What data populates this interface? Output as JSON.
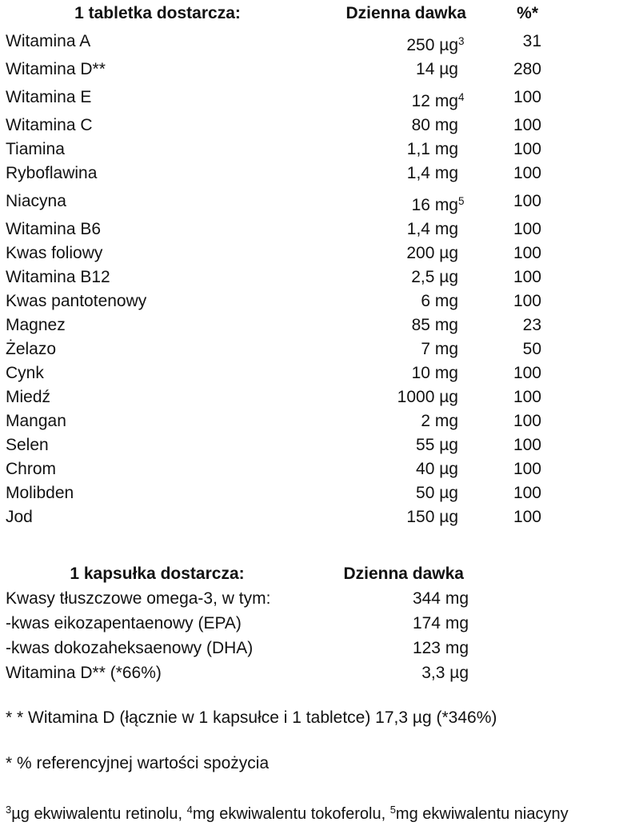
{
  "table1": {
    "header": {
      "col1": "1 tabletka dostarcza:",
      "col2": "Dzienna dawka",
      "col3": "%*"
    },
    "rows": [
      {
        "name": "Witamina A",
        "value": "250 µg",
        "sup": "3",
        "pct": "31"
      },
      {
        "name": "Witamina D**",
        "value": "14 µg",
        "sup": "",
        "pct": "280"
      },
      {
        "name": "Witamina E",
        "value": "12 mg",
        "sup": "4",
        "pct": "100"
      },
      {
        "name": "Witamina C",
        "value": "80 mg",
        "sup": "",
        "pct": "100"
      },
      {
        "name": "Tiamina",
        "value": "1,1 mg",
        "sup": "",
        "pct": "100"
      },
      {
        "name": "Ryboflawina",
        "value": "1,4 mg",
        "sup": "",
        "pct": "100"
      },
      {
        "name": "Niacyna",
        "value": "16 mg",
        "sup": "5",
        "pct": "100"
      },
      {
        "name": "Witamina B6",
        "value": "1,4 mg",
        "sup": "",
        "pct": "100"
      },
      {
        "name": "Kwas foliowy",
        "value": "200 µg",
        "sup": "",
        "pct": "100"
      },
      {
        "name": "Witamina B12",
        "value": "2,5 µg",
        "sup": "",
        "pct": "100"
      },
      {
        "name": "Kwas pantotenowy",
        "value": "6 mg",
        "sup": "",
        "pct": "100"
      },
      {
        "name": "Magnez",
        "value": "85 mg",
        "sup": "",
        "pct": "23"
      },
      {
        "name": "Żelazo",
        "value": "7 mg",
        "sup": "",
        "pct": "50"
      },
      {
        "name": "Cynk",
        "value": "10 mg",
        "sup": "",
        "pct": "100"
      },
      {
        "name": "Miedź",
        "value": "1000 µg",
        "sup": "",
        "pct": "100"
      },
      {
        "name": "Mangan",
        "value": "2 mg",
        "sup": "",
        "pct": "100"
      },
      {
        "name": "Selen",
        "value": "55 µg",
        "sup": "",
        "pct": "100"
      },
      {
        "name": "Chrom",
        "value": "40 µg",
        "sup": "",
        "pct": "100"
      },
      {
        "name": "Molibden",
        "value": "50 µg",
        "sup": "",
        "pct": "100"
      },
      {
        "name": "Jod",
        "value": "150 µg",
        "sup": "",
        "pct": "100"
      }
    ]
  },
  "table2": {
    "header": {
      "col1": "1 kapsułka dostarcza:",
      "col2": "Dzienna dawka"
    },
    "rows": [
      {
        "name": "Kwasy tłuszczowe omega-3, w tym:",
        "value": "344 mg"
      },
      {
        "name": "-kwas eikozapentaenowy (EPA)",
        "value": "174 mg"
      },
      {
        "name": "-kwas dokozaheksaenowy (DHA)",
        "value": "123 mg"
      },
      {
        "name": "Witamina D** (*66%)",
        "value": "3,3 µg"
      }
    ]
  },
  "footnotes": {
    "double_star": "* * Witamina D (łącznie w 1 kapsułce i 1 tabletce) 17,3 µg (*346%)",
    "single_star": "* % referencyjnej wartości spożycia",
    "numbered": [
      {
        "sup": "3",
        "text": "µg ekwiwalentu retinolu, "
      },
      {
        "sup": "4",
        "text": "mg ekwiwalentu tokoferolu, "
      },
      {
        "sup": "5",
        "text": "mg ekwiwalentu niacyny"
      }
    ]
  },
  "colors": {
    "text": "#121212",
    "background": "#ffffff"
  }
}
